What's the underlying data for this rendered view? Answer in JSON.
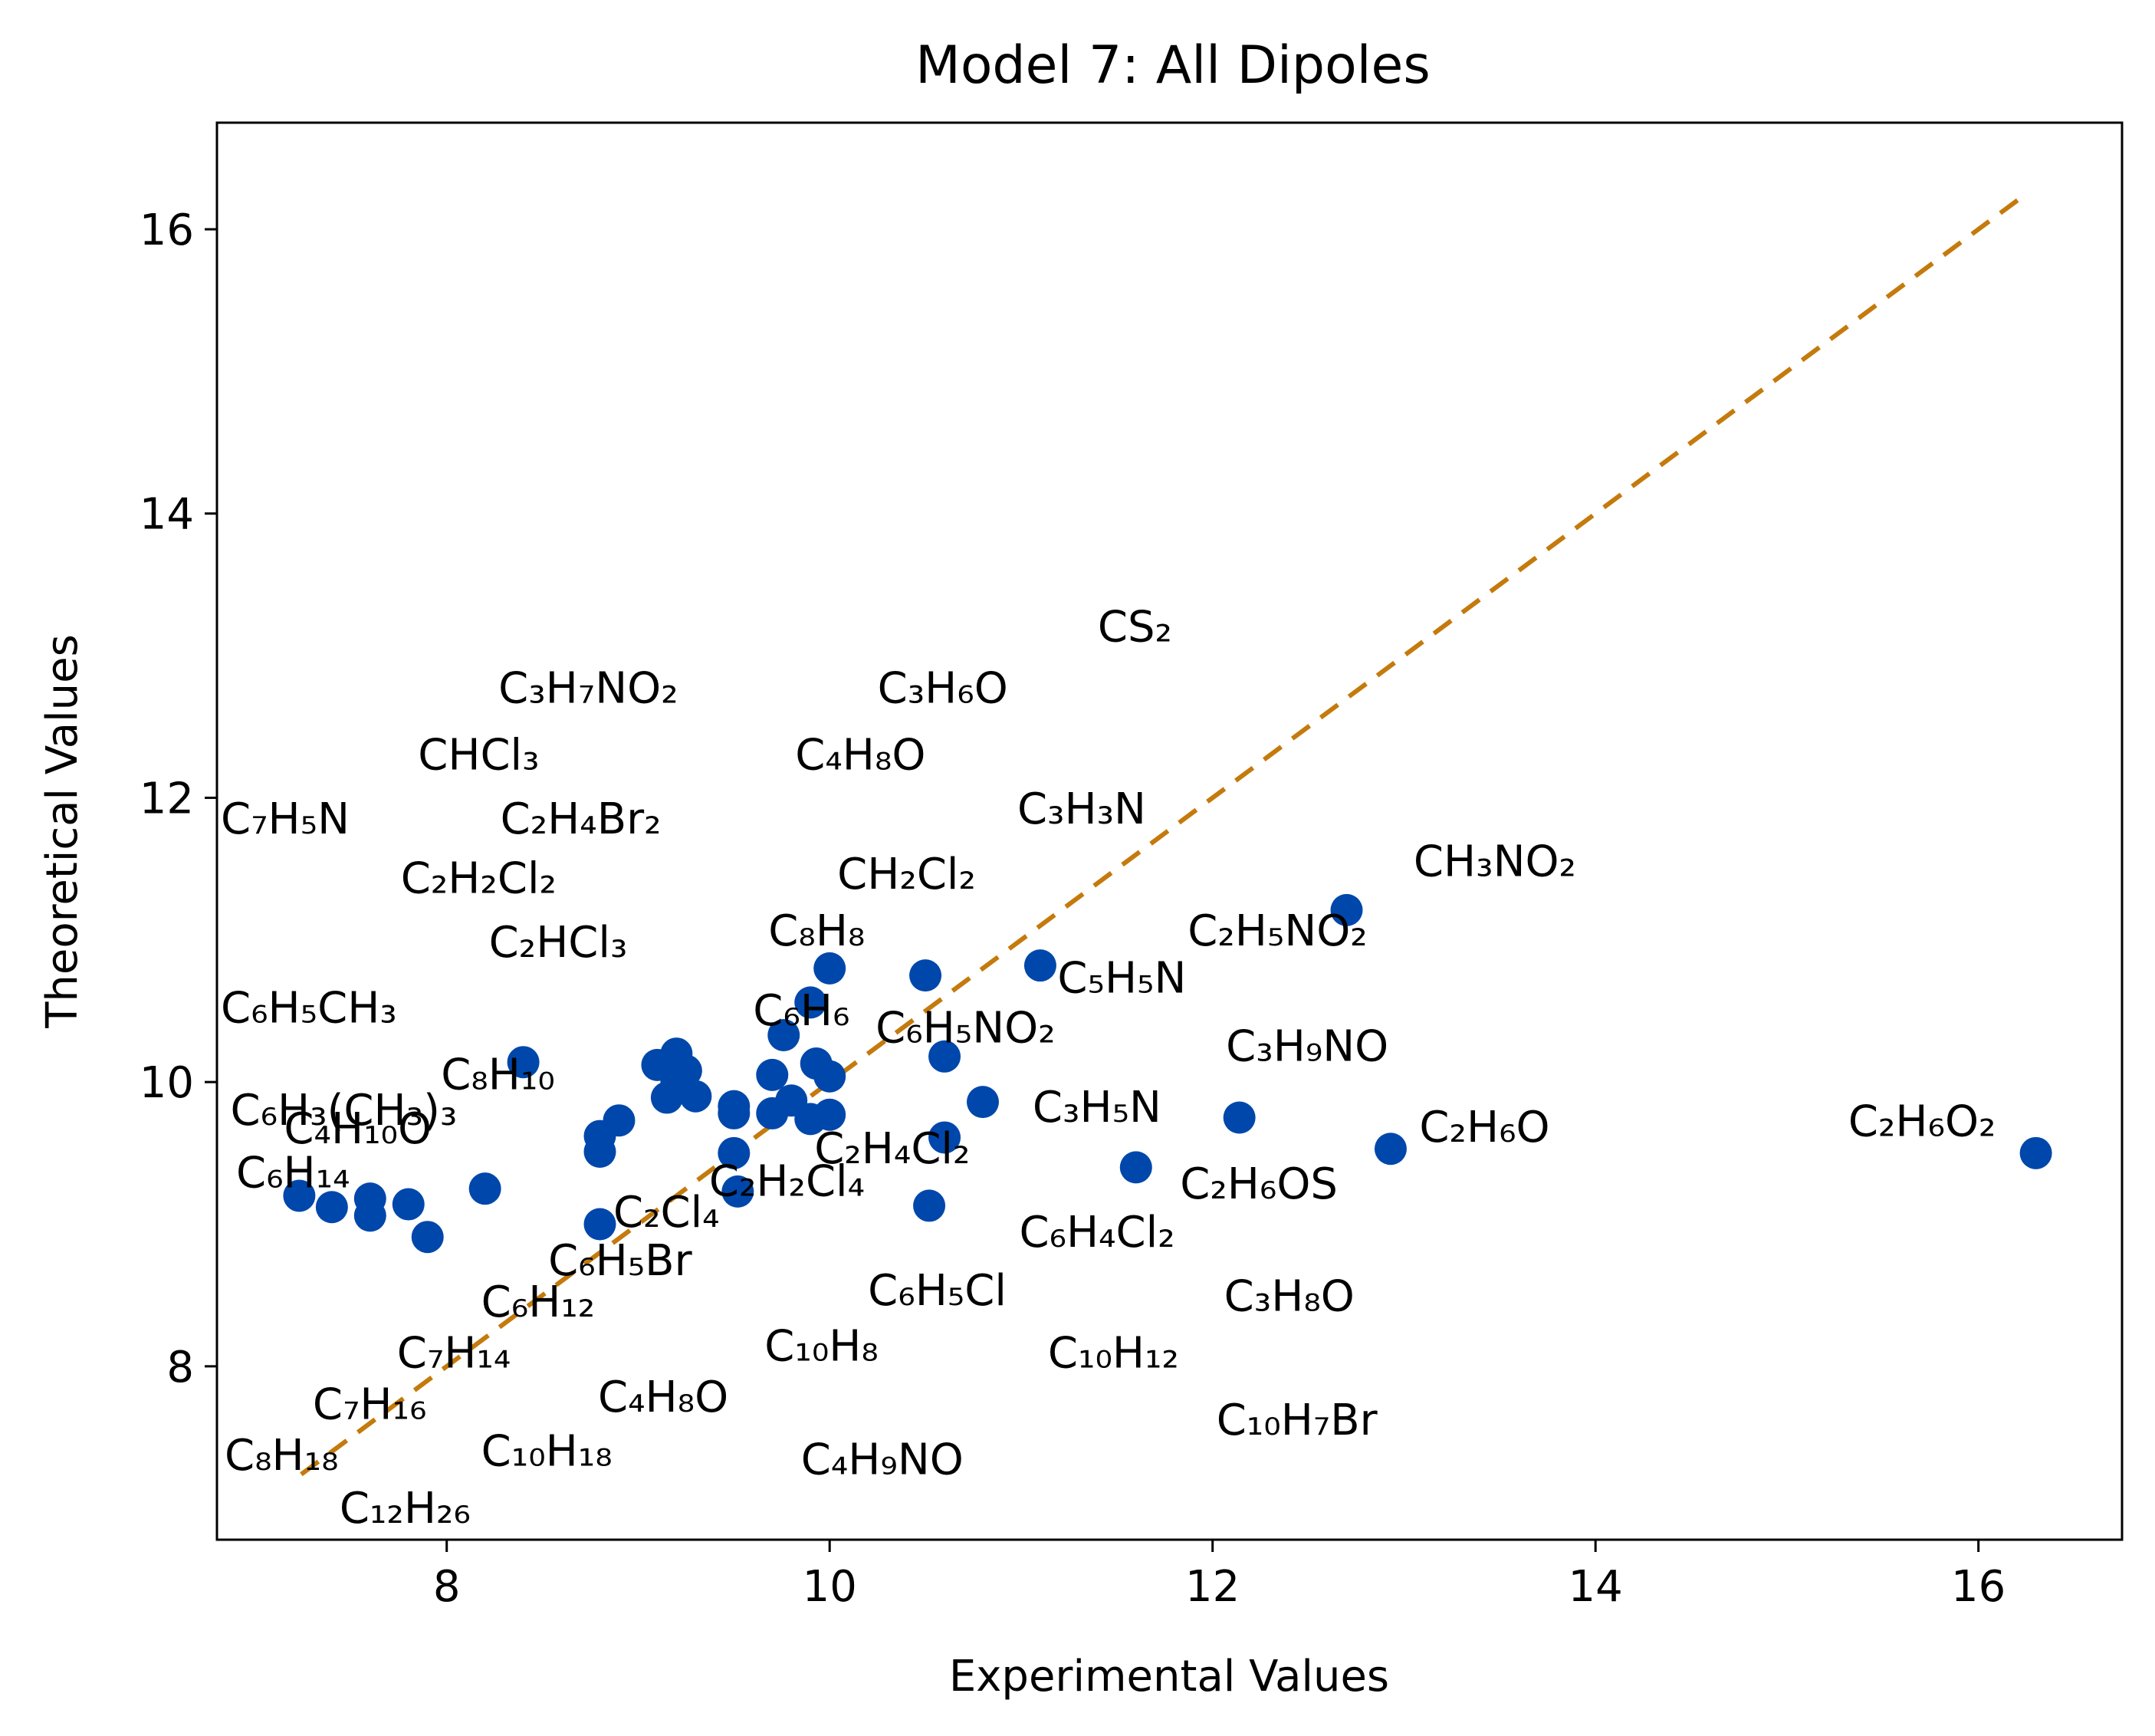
{
  "chart_data": {
    "type": "scatter",
    "title": "Model 7: All Dipoles",
    "xlabel": "Experimental Values",
    "ylabel": "Theoretical Values",
    "xlim": [
      6.8,
      16.75
    ],
    "ylim": [
      6.78,
      16.75
    ],
    "xticks": [
      8,
      10,
      12,
      14,
      16
    ],
    "yticks": [
      8,
      10,
      12,
      14,
      16
    ],
    "grid": false,
    "legend": "none",
    "colors": {
      "points": "#0047ab",
      "reference_line": "#c47a0c",
      "axes": "#000000"
    },
    "reference_line": {
      "style": "dashed",
      "from": [
        7.24,
        7.24
      ],
      "to": [
        16.25,
        16.25
      ]
    },
    "points": [
      {
        "x": 7.23,
        "y": 9.2
      },
      {
        "x": 7.4,
        "y": 9.12
      },
      {
        "x": 7.6,
        "y": 9.18
      },
      {
        "x": 7.6,
        "y": 9.06
      },
      {
        "x": 7.8,
        "y": 9.14
      },
      {
        "x": 7.9,
        "y": 8.91
      },
      {
        "x": 8.2,
        "y": 9.25
      },
      {
        "x": 8.4,
        "y": 10.14
      },
      {
        "x": 8.8,
        "y": 9.62
      },
      {
        "x": 8.8,
        "y": 9.51
      },
      {
        "x": 8.8,
        "y": 9.0
      },
      {
        "x": 8.9,
        "y": 9.73
      },
      {
        "x": 9.1,
        "y": 10.12
      },
      {
        "x": 9.15,
        "y": 9.89
      },
      {
        "x": 9.2,
        "y": 10.2
      },
      {
        "x": 9.2,
        "y": 10.0
      },
      {
        "x": 9.25,
        "y": 10.08
      },
      {
        "x": 9.3,
        "y": 9.9
      },
      {
        "x": 9.5,
        "y": 9.83
      },
      {
        "x": 9.5,
        "y": 9.78
      },
      {
        "x": 9.5,
        "y": 9.5
      },
      {
        "x": 9.52,
        "y": 9.23
      },
      {
        "x": 9.7,
        "y": 10.05
      },
      {
        "x": 9.7,
        "y": 9.78
      },
      {
        "x": 9.76,
        "y": 10.33
      },
      {
        "x": 9.8,
        "y": 9.87
      },
      {
        "x": 9.9,
        "y": 10.56
      },
      {
        "x": 9.9,
        "y": 9.74
      },
      {
        "x": 9.93,
        "y": 10.13
      },
      {
        "x": 10.0,
        "y": 10.8
      },
      {
        "x": 10.0,
        "y": 10.04
      },
      {
        "x": 10.0,
        "y": 9.77
      },
      {
        "x": 10.5,
        "y": 10.75
      },
      {
        "x": 10.52,
        "y": 9.13
      },
      {
        "x": 10.6,
        "y": 10.18
      },
      {
        "x": 10.6,
        "y": 9.61
      },
      {
        "x": 10.8,
        "y": 9.86
      },
      {
        "x": 11.1,
        "y": 10.82
      },
      {
        "x": 11.6,
        "y": 9.4
      },
      {
        "x": 12.14,
        "y": 9.75
      },
      {
        "x": 12.7,
        "y": 11.21
      },
      {
        "x": 12.93,
        "y": 9.53
      },
      {
        "x": 16.3,
        "y": 9.5
      }
    ],
    "annotations": [
      {
        "text": "CS₂",
        "x": 11.4,
        "y": 13.1
      },
      {
        "text": "C₃H₇NO₂",
        "x": 8.27,
        "y": 12.67
      },
      {
        "text": "C₃H₆O",
        "x": 10.25,
        "y": 12.67
      },
      {
        "text": "CHCl₃",
        "x": 7.85,
        "y": 12.2
      },
      {
        "text": "C₄H₈O",
        "x": 9.82,
        "y": 12.2
      },
      {
        "text": "C₇H₅N",
        "x": 6.82,
        "y": 11.75
      },
      {
        "text": "C₂H₄Br₂",
        "x": 8.28,
        "y": 11.75
      },
      {
        "text": "C₃H₃N",
        "x": 10.98,
        "y": 11.82
      },
      {
        "text": "C₂H₂Cl₂",
        "x": 7.76,
        "y": 11.33
      },
      {
        "text": "CH₂Cl₂",
        "x": 10.04,
        "y": 11.36
      },
      {
        "text": "CH₃NO₂",
        "x": 13.05,
        "y": 11.45
      },
      {
        "text": "C₂HCl₃",
        "x": 8.22,
        "y": 10.88
      },
      {
        "text": "C₈H₈",
        "x": 9.68,
        "y": 10.96
      },
      {
        "text": "C₂H₅NO₂",
        "x": 11.87,
        "y": 10.96
      },
      {
        "text": "C₅H₅N",
        "x": 11.19,
        "y": 10.63
      },
      {
        "text": "C₆H₆",
        "x": 9.6,
        "y": 10.4
      },
      {
        "text": "C₆H₅CH₃",
        "x": 6.82,
        "y": 10.42
      },
      {
        "text": "C₆H₅NO₂",
        "x": 10.24,
        "y": 10.28
      },
      {
        "text": "C₃H₉NO",
        "x": 12.07,
        "y": 10.15
      },
      {
        "text": "C₈H₁₀",
        "x": 7.97,
        "y": 9.95
      },
      {
        "text": "C₆H₃(CH₃)₃",
        "x": 6.87,
        "y": 9.7
      },
      {
        "text": "C₄H₁₀O",
        "x": 7.15,
        "y": 9.57
      },
      {
        "text": "C₃H₅N",
        "x": 11.06,
        "y": 9.72
      },
      {
        "text": "C₂H₆O₂",
        "x": 15.32,
        "y": 9.62
      },
      {
        "text": "C₂H₆O",
        "x": 13.08,
        "y": 9.58
      },
      {
        "text": "C₂H₄Cl₂",
        "x": 9.92,
        "y": 9.43
      },
      {
        "text": "C₆H₁₄",
        "x": 6.9,
        "y": 9.26
      },
      {
        "text": "C₂H₂Cl₄",
        "x": 9.37,
        "y": 9.2
      },
      {
        "text": "C₂H₆OS",
        "x": 11.83,
        "y": 9.18
      },
      {
        "text": "C₂Cl₄",
        "x": 8.87,
        "y": 8.98
      },
      {
        "text": "C₆H₄Cl₂",
        "x": 10.99,
        "y": 8.84
      },
      {
        "text": "C₆H₅Br",
        "x": 8.53,
        "y": 8.64
      },
      {
        "text": "C₆H₅Cl",
        "x": 10.2,
        "y": 8.43
      },
      {
        "text": "C₃H₈O",
        "x": 12.06,
        "y": 8.39
      },
      {
        "text": "C₆H₁₂",
        "x": 8.18,
        "y": 8.35
      },
      {
        "text": "C₁₀H₈",
        "x": 9.66,
        "y": 8.04
      },
      {
        "text": "C₇H₁₄",
        "x": 7.74,
        "y": 7.99
      },
      {
        "text": "C₁₀H₁₂",
        "x": 11.14,
        "y": 7.99
      },
      {
        "text": "C₇H₁₆",
        "x": 7.3,
        "y": 7.63
      },
      {
        "text": "C₄H₈O",
        "x": 8.79,
        "y": 7.68
      },
      {
        "text": "C₁₀H₇Br",
        "x": 12.02,
        "y": 7.52
      },
      {
        "text": "C₈H₁₈",
        "x": 6.84,
        "y": 7.27
      },
      {
        "text": "C₁₀H₁₈",
        "x": 8.18,
        "y": 7.3
      },
      {
        "text": "C₄H₉NO",
        "x": 9.85,
        "y": 7.24
      },
      {
        "text": "C₁₂H₂₆",
        "x": 7.44,
        "y": 6.9
      }
    ]
  }
}
